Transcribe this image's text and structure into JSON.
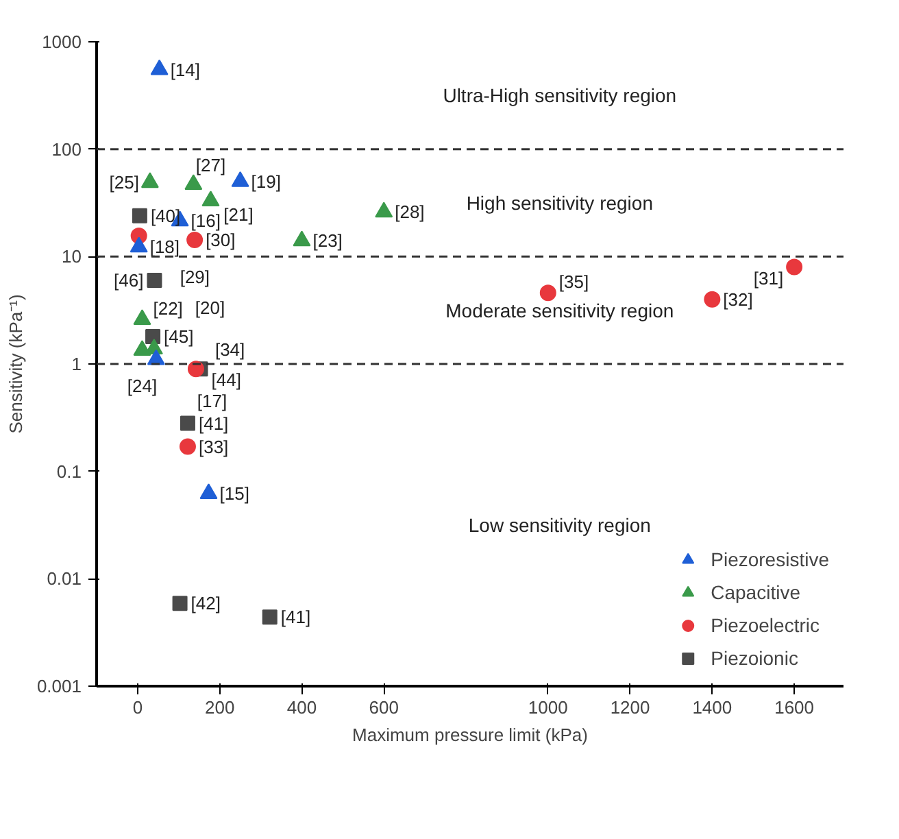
{
  "chart_data": {
    "type": "scatter",
    "xlabel": "Maximum pressure limit (kPa)",
    "ylabel": "Sensitivity (kPa⁻¹)",
    "xlim": [
      -100,
      1720
    ],
    "ylim": [
      0.001,
      1000
    ],
    "log": "y",
    "xticks": [
      0,
      200,
      400,
      600,
      1000,
      1200,
      1400,
      1600
    ],
    "yticks": [
      0.001,
      0.01,
      0.1,
      1,
      10,
      100,
      1000
    ],
    "grid": false,
    "legend": "bottom right",
    "series": [
      {
        "name": "Piezoresistive",
        "color": "#1f5fd6",
        "marker": "triangle",
        "x": [
          53,
          250,
          103,
          3,
          45,
          173
        ],
        "values": [
          550,
          50,
          21.5,
          12.3,
          1.1,
          0.062
        ]
      },
      {
        "name": "Capacitive",
        "color": "#3a9a4a",
        "marker": "triangle",
        "x": [
          30,
          136,
          178,
          400,
          600,
          11,
          11,
          40
        ],
        "values": [
          49,
          47,
          33,
          14,
          26,
          2.6,
          1.34,
          1.38
        ]
      },
      {
        "name": "Piezoelectric",
        "color": "#e8383d",
        "marker": "circle",
        "x": [
          3,
          139,
          142,
          122,
          1000,
          1400,
          1600
        ],
        "values": [
          15.6,
          14.3,
          0.9,
          0.17,
          4.6,
          4.0,
          8
        ]
      },
      {
        "name": "Piezoionic",
        "color": "#4a4a4a",
        "marker": "square",
        "x": [
          5,
          41,
          37,
          153,
          122,
          103,
          322
        ],
        "values": [
          24,
          6,
          1.8,
          0.9,
          0.28,
          0.0059,
          0.0044
        ]
      }
    ],
    "ref_lines": [
      {
        "axis": "y",
        "value": 100,
        "color": "#333333",
        "line_style": "dashed"
      },
      {
        "axis": "y",
        "value": 10,
        "color": "#333333",
        "line_style": "dashed"
      },
      {
        "axis": "y",
        "value": 1,
        "color": "#333333",
        "line_style": "dashed"
      }
    ],
    "annotations": [
      {
        "text": "[14]",
        "x": 53,
        "y": 550
      },
      {
        "text": "[19]",
        "x": 250,
        "y": 50
      },
      {
        "text": "[25]",
        "x": 30,
        "y": 49
      },
      {
        "text": "[21]",
        "x": 136,
        "y": 47
      },
      {
        "text": "[40]",
        "x": 5,
        "y": 24
      },
      {
        "text": "[16]",
        "x": 103,
        "y": 21.5
      },
      {
        "text": "[27]",
        "x": 178,
        "y": 33
      },
      {
        "text": "[29]",
        "x": 3,
        "y": 15.6
      },
      {
        "text": "[18]",
        "x": 3,
        "y": 12.3
      },
      {
        "text": "[30]",
        "x": 139,
        "y": 14.3
      },
      {
        "text": "[23]",
        "x": 400,
        "y": 14
      },
      {
        "text": "[28]",
        "x": 600,
        "y": 26
      },
      {
        "text": "[46]",
        "x": 41,
        "y": 6
      },
      {
        "text": "[22]",
        "x": 11,
        "y": 2.6
      },
      {
        "text": "[45]",
        "x": 37,
        "y": 1.8
      },
      {
        "text": "[24]",
        "x": 11,
        "y": 1.34
      },
      {
        "text": "[20]",
        "x": 40,
        "y": 1.38
      },
      {
        "text": "[44]",
        "x": 153,
        "y": 0.9
      },
      {
        "text": "[17]",
        "x": 45,
        "y": 1.1
      },
      {
        "text": "[34]",
        "x": 142,
        "y": 0.9
      },
      {
        "text": "[41]",
        "x": 122,
        "y": 0.28
      },
      {
        "text": "[33]",
        "x": 122,
        "y": 0.17
      },
      {
        "text": "[15]",
        "x": 173,
        "y": 0.062
      },
      {
        "text": "[42]",
        "x": 103,
        "y": 0.0059
      },
      {
        "text": "[41]",
        "x": 322,
        "y": 0.0044
      },
      {
        "text": "[35]",
        "x": 1000,
        "y": 4.6
      },
      {
        "text": "[32]",
        "x": 1400,
        "y": 4.0
      },
      {
        "text": "[31]",
        "x": 1600,
        "y": 8
      },
      "Ultra-High sensitivity region",
      "High sensitivity region",
      "Moderate sensitivity region",
      "Low sensitivity region"
    ]
  }
}
